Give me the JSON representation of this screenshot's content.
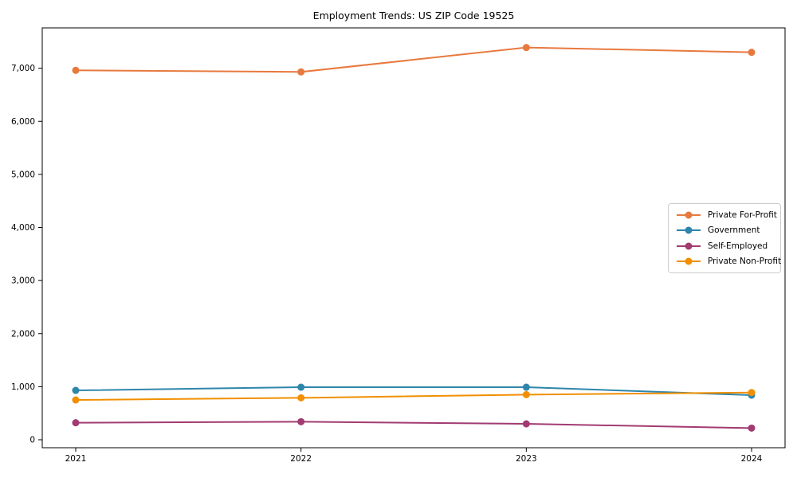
{
  "chart_data": {
    "type": "line",
    "title": "Employment Trends: US ZIP Code 19525",
    "categories": [
      "2021",
      "2022",
      "2023",
      "2024"
    ],
    "series": [
      {
        "name": "Private For-Profit",
        "color": "#E8793E",
        "values": [
          6960,
          6930,
          7390,
          7300
        ]
      },
      {
        "name": "Government",
        "color": "#2E86AB",
        "values": [
          930,
          990,
          990,
          840
        ]
      },
      {
        "name": "Self-Employed",
        "color": "#A23B72",
        "values": [
          320,
          340,
          300,
          220
        ]
      },
      {
        "name": "Private Non-Profit",
        "color": "#F18F01",
        "values": [
          750,
          790,
          850,
          890
        ]
      }
    ],
    "yticks": [
      0,
      1000,
      2000,
      3000,
      4000,
      5000,
      6000,
      7000
    ],
    "ytick_labels": [
      "0",
      "1,000",
      "2,000",
      "3,000",
      "4,000",
      "5,000",
      "6,000",
      "7,000"
    ],
    "ylim": [
      -150,
      7760
    ],
    "xlabel": "",
    "ylabel": "",
    "legend_position": "center right",
    "grid": false,
    "marker": "circle",
    "line_width": 2,
    "marker_radius": 4.5,
    "axis_color": "#000000",
    "background_color": "#ffffff"
  }
}
